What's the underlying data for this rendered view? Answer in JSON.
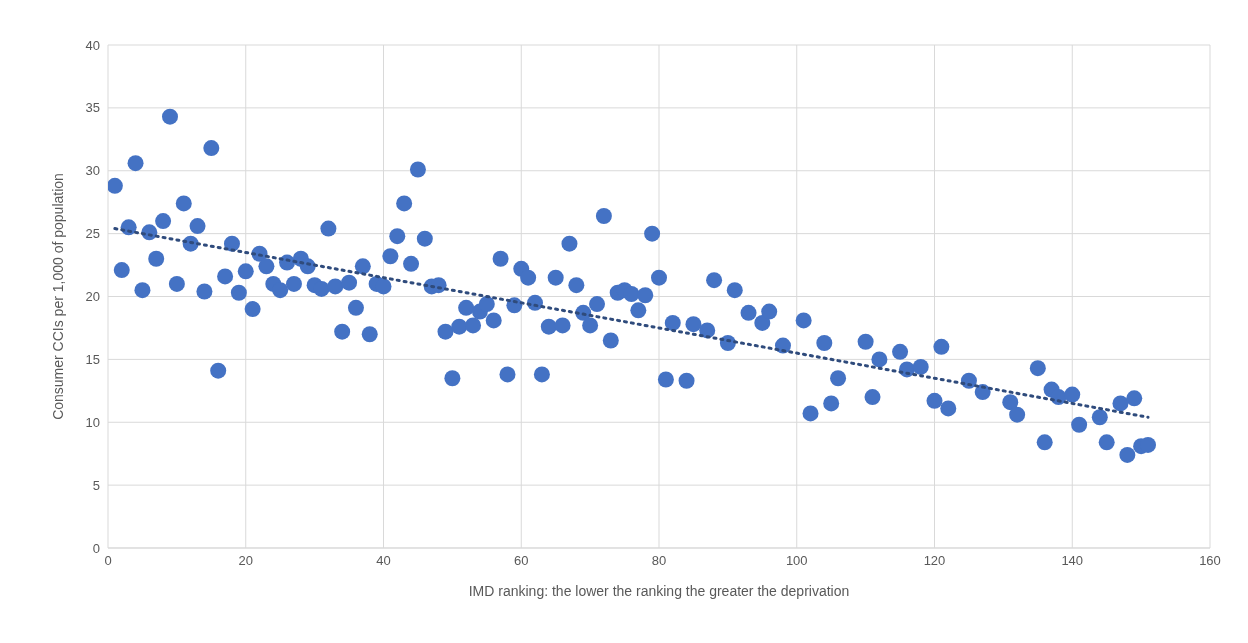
{
  "chart_data": {
    "type": "scatter",
    "xlabel": "IMD ranking: the lower the ranking the greater the deprivation",
    "ylabel": "Consumer CCIs per 1,000 of population",
    "xlim": [
      0,
      160
    ],
    "xticks": [
      0,
      20,
      40,
      60,
      80,
      100,
      120,
      140,
      160
    ],
    "ylim": [
      0,
      40
    ],
    "yticks": [
      0,
      5,
      10,
      15,
      20,
      25,
      30,
      35,
      40
    ],
    "grid": true,
    "legend": false,
    "marker": "circle",
    "series": [
      {
        "type": "scatter",
        "color": "#4472c4",
        "x": [
          1,
          2,
          3,
          4,
          5,
          6,
          7,
          8,
          9,
          10,
          11,
          12,
          13,
          14,
          15,
          16,
          17,
          18,
          19,
          20,
          21,
          22,
          23,
          24,
          25,
          26,
          27,
          28,
          29,
          30,
          31,
          32,
          33,
          34,
          35,
          36,
          37,
          38,
          39,
          40,
          41,
          42,
          43,
          44,
          45,
          46,
          47,
          48,
          49,
          50,
          51,
          52,
          53,
          54,
          55,
          56,
          57,
          58,
          59,
          60,
          61,
          62,
          63,
          64,
          65,
          66,
          67,
          68,
          69,
          70,
          71,
          72,
          73,
          74,
          75,
          76,
          77,
          78,
          79,
          80,
          81,
          82,
          84,
          85,
          87,
          88,
          90,
          91,
          93,
          95,
          96,
          98,
          101,
          102,
          104,
          105,
          106,
          110,
          111,
          112,
          115,
          116,
          118,
          120,
          121,
          122,
          125,
          127,
          131,
          132,
          135,
          136,
          137,
          138,
          140,
          141,
          144,
          145,
          147,
          148,
          149,
          150,
          151
        ],
        "values": [
          28.8,
          22.1,
          25.5,
          30.6,
          20.5,
          25.1,
          23.0,
          26.0,
          34.3,
          21.0,
          27.4,
          24.2,
          25.6,
          20.4,
          31.8,
          14.1,
          21.6,
          24.2,
          20.3,
          22.0,
          19.0,
          23.4,
          22.4,
          21.0,
          20.5,
          22.7,
          21.0,
          23.0,
          22.4,
          20.9,
          20.6,
          25.4,
          20.8,
          17.2,
          21.1,
          19.1,
          22.4,
          17.0,
          21.0,
          20.8,
          23.2,
          24.8,
          27.4,
          22.6,
          30.1,
          24.6,
          20.8,
          20.9,
          17.2,
          13.5,
          17.6,
          19.1,
          17.7,
          18.8,
          19.4,
          18.1,
          23.0,
          13.8,
          19.3,
          22.2,
          21.5,
          19.5,
          13.8,
          17.6,
          21.5,
          17.7,
          24.2,
          20.9,
          18.7,
          17.7,
          19.4,
          26.4,
          16.5,
          20.3,
          20.5,
          20.2,
          18.9,
          20.1,
          25.0,
          21.5,
          13.4,
          17.9,
          13.3,
          17.8,
          17.3,
          21.3,
          16.3,
          20.5,
          18.7,
          17.9,
          18.8,
          16.1,
          18.1,
          10.7,
          16.3,
          11.5,
          13.5,
          16.4,
          12.0,
          15.0,
          15.6,
          14.2,
          14.4,
          11.7,
          16.0,
          11.1,
          13.3,
          12.4,
          11.6,
          10.6,
          14.3,
          8.4,
          12.6,
          12.0,
          12.2,
          9.8,
          10.4,
          8.4,
          11.5,
          7.4,
          11.9,
          8.1,
          8.2
        ]
      },
      {
        "type": "line",
        "color": "#2f4b7c",
        "line_style": "dotted",
        "marker": "none",
        "x": [
          1,
          151
        ],
        "values": [
          25.4,
          10.4
        ]
      }
    ]
  }
}
